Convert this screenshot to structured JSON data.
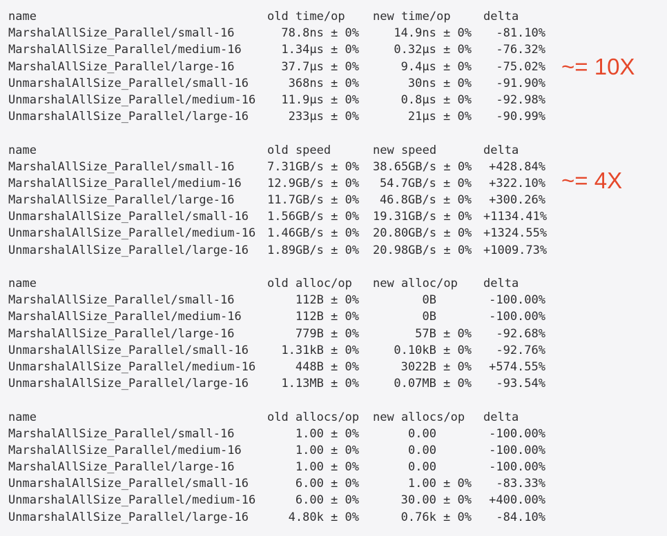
{
  "page": {
    "background": "#f5f5f7",
    "text_color": "#2f2f31",
    "annotation_color": "#e5482b"
  },
  "annotations": [
    {
      "text": "~= 10X",
      "refers_to": "time/op table"
    },
    {
      "text": "~= 4X",
      "refers_to": "speed table"
    }
  ],
  "tables": [
    {
      "headers": {
        "name": "name",
        "old": "old time/op",
        "new": "new time/op",
        "delta": "delta"
      },
      "rows": [
        {
          "name": "MarshalAllSize_Parallel/small-16",
          "old": "78.8ns ± 0%",
          "new": "14.9ns ± 0%",
          "delta": "-81.10%"
        },
        {
          "name": "MarshalAllSize_Parallel/medium-16",
          "old": "1.34µs ± 0%",
          "new": "0.32µs ± 0%",
          "delta": "-76.32%"
        },
        {
          "name": "MarshalAllSize_Parallel/large-16",
          "old": "37.7µs ± 0%",
          "new": "9.4µs ± 0%",
          "delta": "-75.02%"
        },
        {
          "name": "UnmarshalAllSize_Parallel/small-16",
          "old": "368ns ± 0%",
          "new": "30ns ± 0%",
          "delta": "-91.90%"
        },
        {
          "name": "UnmarshalAllSize_Parallel/medium-16",
          "old": "11.9µs ± 0%",
          "new": "0.8µs ± 0%",
          "delta": "-92.98%"
        },
        {
          "name": "UnmarshalAllSize_Parallel/large-16",
          "old": "233µs ± 0%",
          "new": "21µs ± 0%",
          "delta": "-90.99%"
        }
      ]
    },
    {
      "headers": {
        "name": "name",
        "old": "old speed",
        "new": "new speed",
        "delta": "delta"
      },
      "rows": [
        {
          "name": "MarshalAllSize_Parallel/small-16",
          "old": "7.31GB/s ± 0%",
          "new": "38.65GB/s ± 0%",
          "delta": "+428.84%"
        },
        {
          "name": "MarshalAllSize_Parallel/medium-16",
          "old": "12.9GB/s ± 0%",
          "new": "54.7GB/s ± 0%",
          "delta": "+322.10%"
        },
        {
          "name": "MarshalAllSize_Parallel/large-16",
          "old": "11.7GB/s ± 0%",
          "new": "46.8GB/s ± 0%",
          "delta": "+300.26%"
        },
        {
          "name": "UnmarshalAllSize_Parallel/small-16",
          "old": "1.56GB/s ± 0%",
          "new": "19.31GB/s ± 0%",
          "delta": "+1134.41%"
        },
        {
          "name": "UnmarshalAllSize_Parallel/medium-16",
          "old": "1.46GB/s ± 0%",
          "new": "20.80GB/s ± 0%",
          "delta": "+1324.55%"
        },
        {
          "name": "UnmarshalAllSize_Parallel/large-16",
          "old": "1.89GB/s ± 0%",
          "new": "20.98GB/s ± 0%",
          "delta": "+1009.73%"
        }
      ]
    },
    {
      "headers": {
        "name": "name",
        "old": "old alloc/op",
        "new": "new alloc/op",
        "delta": "delta"
      },
      "rows": [
        {
          "name": "MarshalAllSize_Parallel/small-16",
          "old": "112B ± 0%",
          "new": "0B",
          "delta": "-100.00%"
        },
        {
          "name": "MarshalAllSize_Parallel/medium-16",
          "old": "112B ± 0%",
          "new": "0B",
          "delta": "-100.00%"
        },
        {
          "name": "MarshalAllSize_Parallel/large-16",
          "old": "779B ± 0%",
          "new": "57B ± 0%",
          "delta": "-92.68%"
        },
        {
          "name": "UnmarshalAllSize_Parallel/small-16",
          "old": "1.31kB ± 0%",
          "new": "0.10kB ± 0%",
          "delta": "-92.76%"
        },
        {
          "name": "UnmarshalAllSize_Parallel/medium-16",
          "old": "448B ± 0%",
          "new": "3022B ± 0%",
          "delta": "+574.55%"
        },
        {
          "name": "UnmarshalAllSize_Parallel/large-16",
          "old": "1.13MB ± 0%",
          "new": "0.07MB ± 0%",
          "delta": "-93.54%"
        }
      ]
    },
    {
      "headers": {
        "name": "name",
        "old": "old allocs/op",
        "new": "new allocs/op",
        "delta": "delta"
      },
      "rows": [
        {
          "name": "MarshalAllSize_Parallel/small-16",
          "old": "1.00 ± 0%",
          "new": "0.00",
          "delta": "-100.00%"
        },
        {
          "name": "MarshalAllSize_Parallel/medium-16",
          "old": "1.00 ± 0%",
          "new": "0.00",
          "delta": "-100.00%"
        },
        {
          "name": "MarshalAllSize_Parallel/large-16",
          "old": "1.00 ± 0%",
          "new": "0.00",
          "delta": "-100.00%"
        },
        {
          "name": "UnmarshalAllSize_Parallel/small-16",
          "old": "6.00 ± 0%",
          "new": "1.00 ± 0%",
          "delta": "-83.33%"
        },
        {
          "name": "UnmarshalAllSize_Parallel/medium-16",
          "old": "6.00 ± 0%",
          "new": "30.00 ± 0%",
          "delta": "+400.00%"
        },
        {
          "name": "UnmarshalAllSize_Parallel/large-16",
          "old": "4.80k ± 0%",
          "new": "0.76k ± 0%",
          "delta": "-84.10%"
        }
      ]
    }
  ]
}
